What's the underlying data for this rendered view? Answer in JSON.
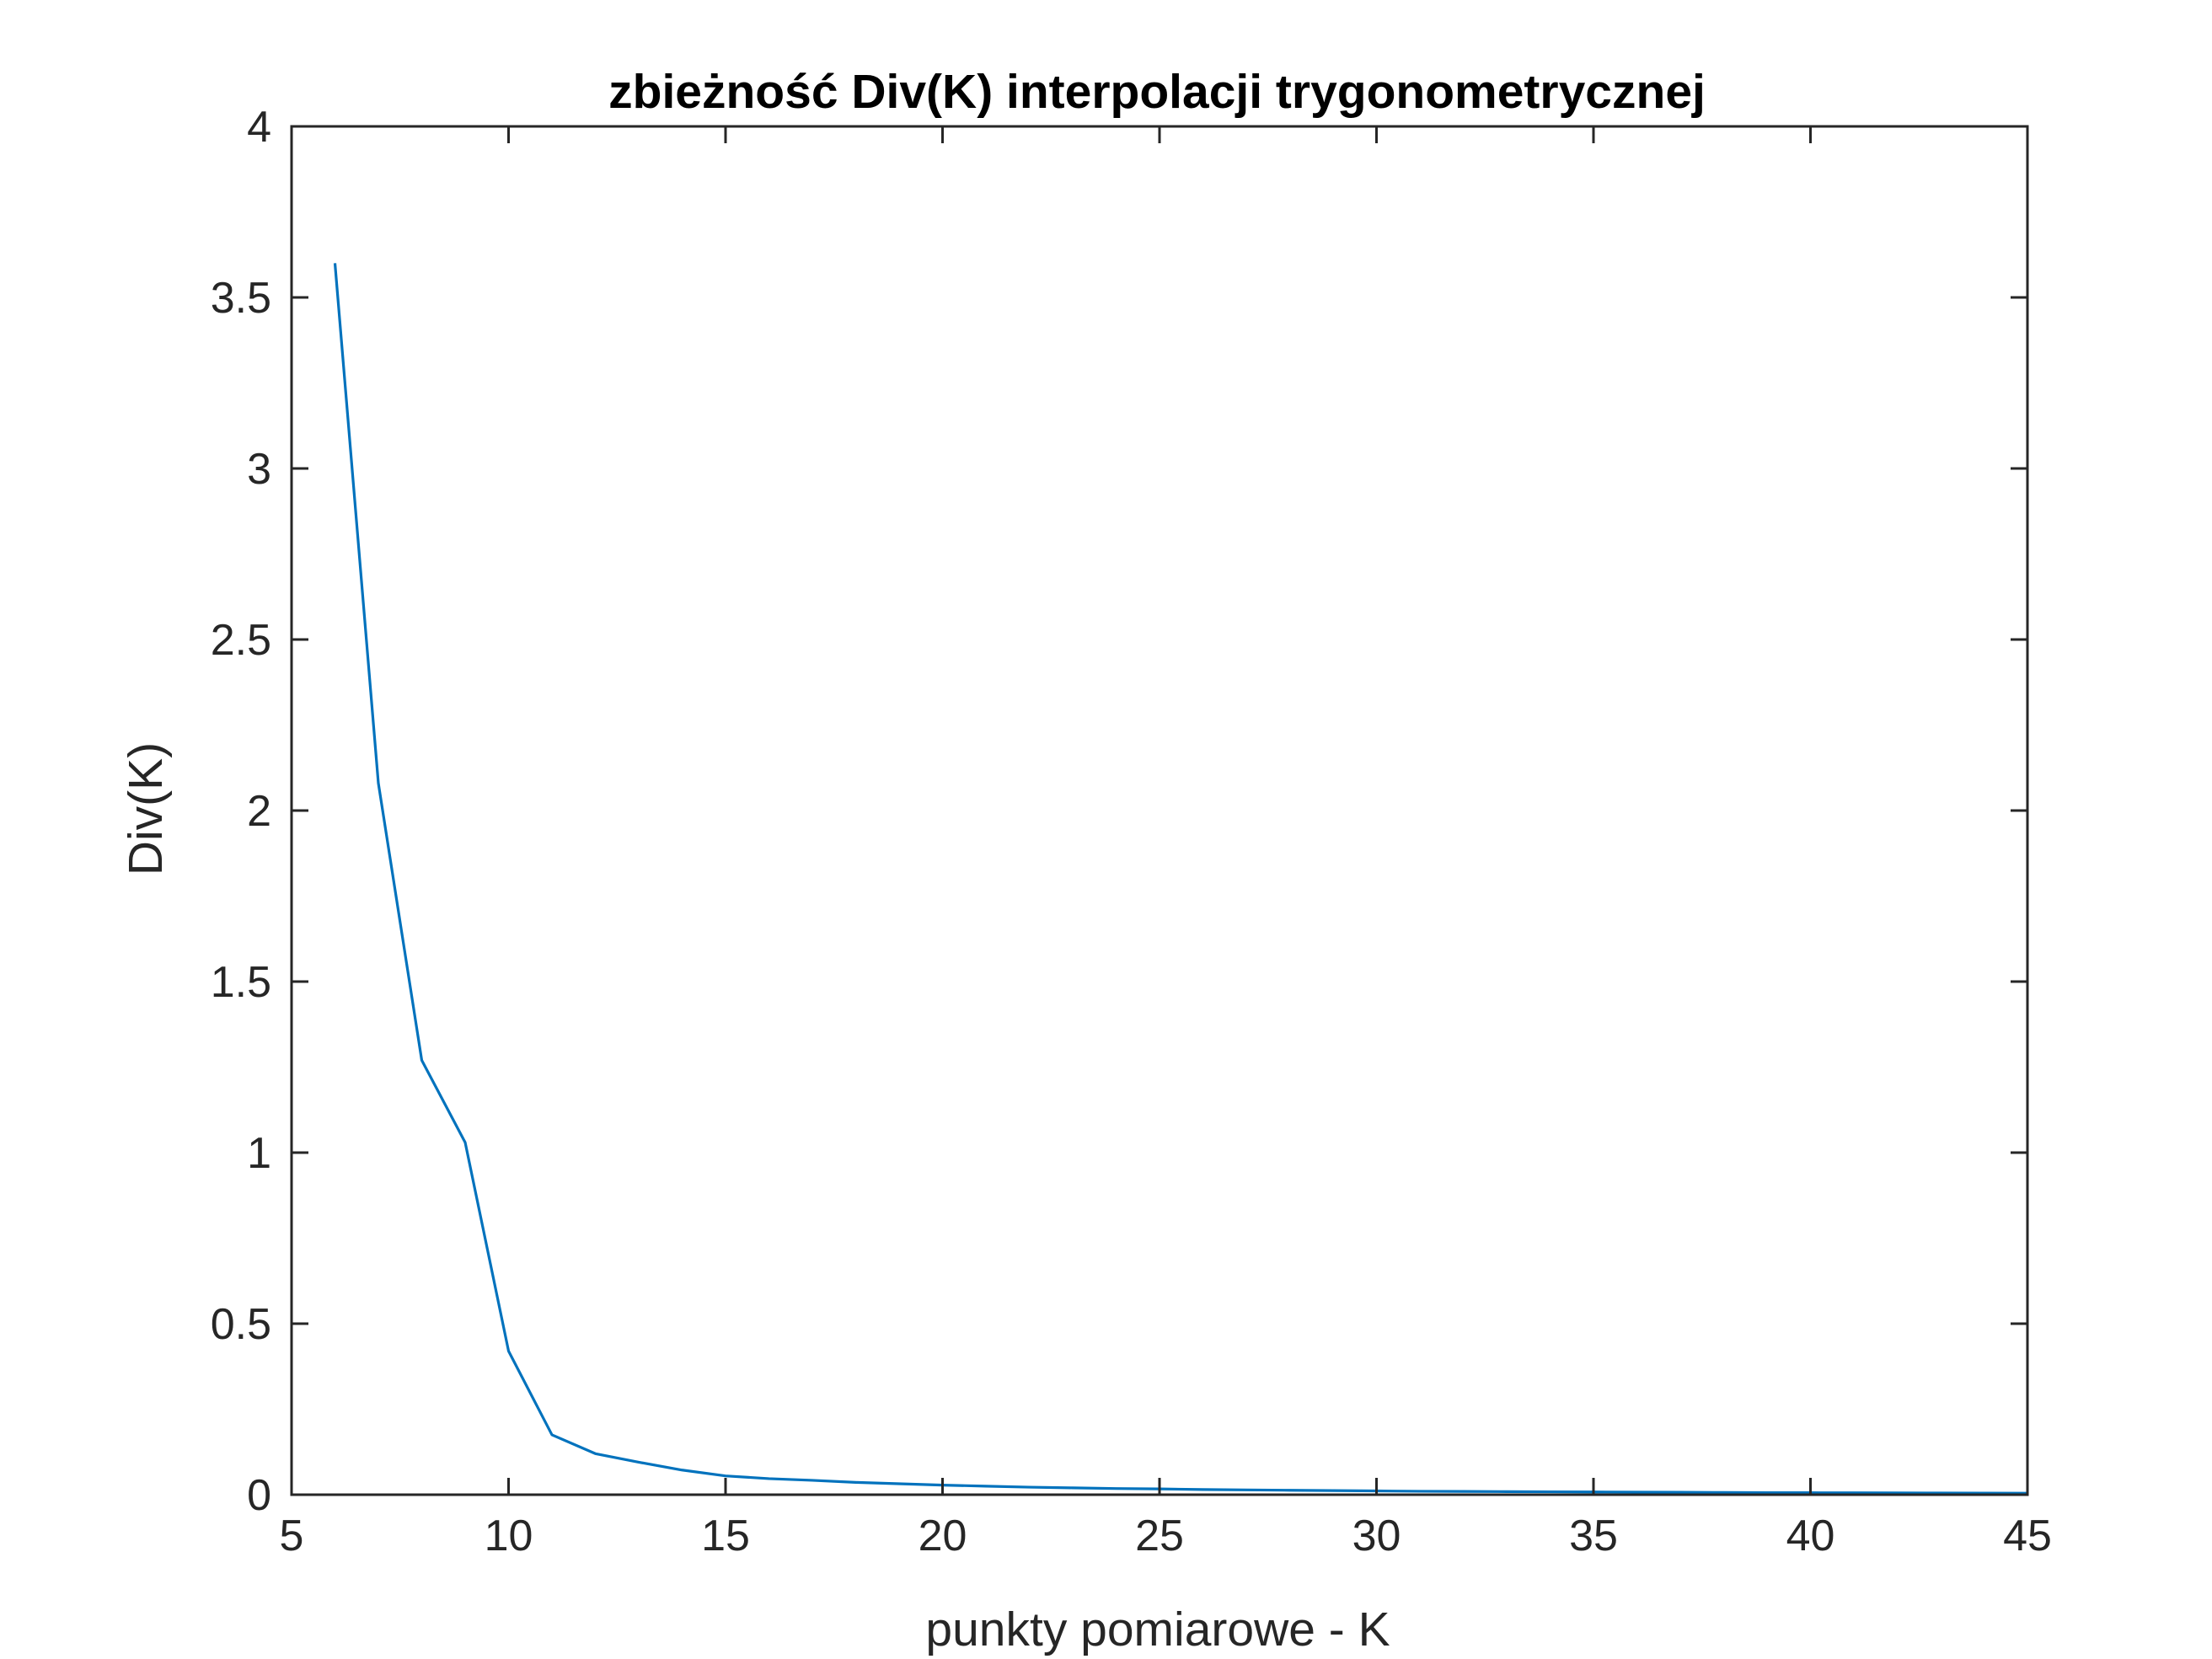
{
  "chart_data": {
    "type": "line",
    "title": "zbieżność Div(K) interpolacji trygonometrycznej",
    "xlabel": "punkty pomiarowe - K",
    "ylabel": "Div(K)",
    "xlim": [
      5,
      45
    ],
    "ylim": [
      0,
      4
    ],
    "xticks": [
      5,
      10,
      15,
      20,
      25,
      30,
      35,
      40,
      45
    ],
    "yticks": [
      0,
      0.5,
      1,
      1.5,
      2,
      2.5,
      3,
      3.5,
      4
    ],
    "xtick_labels": [
      "5",
      "10",
      "15",
      "20",
      "25",
      "30",
      "35",
      "40",
      "45"
    ],
    "ytick_labels": [
      "0",
      "0.5",
      "1",
      "1.5",
      "2",
      "2.5",
      "3",
      "3.5",
      "4"
    ],
    "grid": false,
    "legend": "none",
    "colors": {
      "line": "#0072BD",
      "axes": "#262626",
      "background": "#ffffff"
    },
    "series": [
      {
        "x": [
          6,
          7,
          8,
          9,
          10,
          11,
          12,
          13,
          14,
          15,
          16,
          17,
          18,
          19,
          20,
          21,
          22,
          23,
          24,
          25,
          26,
          27,
          28,
          29,
          30,
          31,
          32,
          33,
          34,
          35,
          36,
          37,
          38,
          39,
          40,
          41,
          42,
          43,
          44,
          45
        ],
        "values": [
          3.6,
          2.08,
          1.27,
          1.03,
          0.42,
          0.175,
          0.12,
          0.095,
          0.072,
          0.055,
          0.047,
          0.042,
          0.036,
          0.032,
          0.028,
          0.025,
          0.022,
          0.02,
          0.018,
          0.017,
          0.015,
          0.014,
          0.013,
          0.012,
          0.011,
          0.01,
          0.0095,
          0.009,
          0.0085,
          0.008,
          0.0075,
          0.007,
          0.0065,
          0.006,
          0.0058,
          0.0055,
          0.0052,
          0.005,
          0.0048,
          0.0045
        ]
      }
    ]
  }
}
